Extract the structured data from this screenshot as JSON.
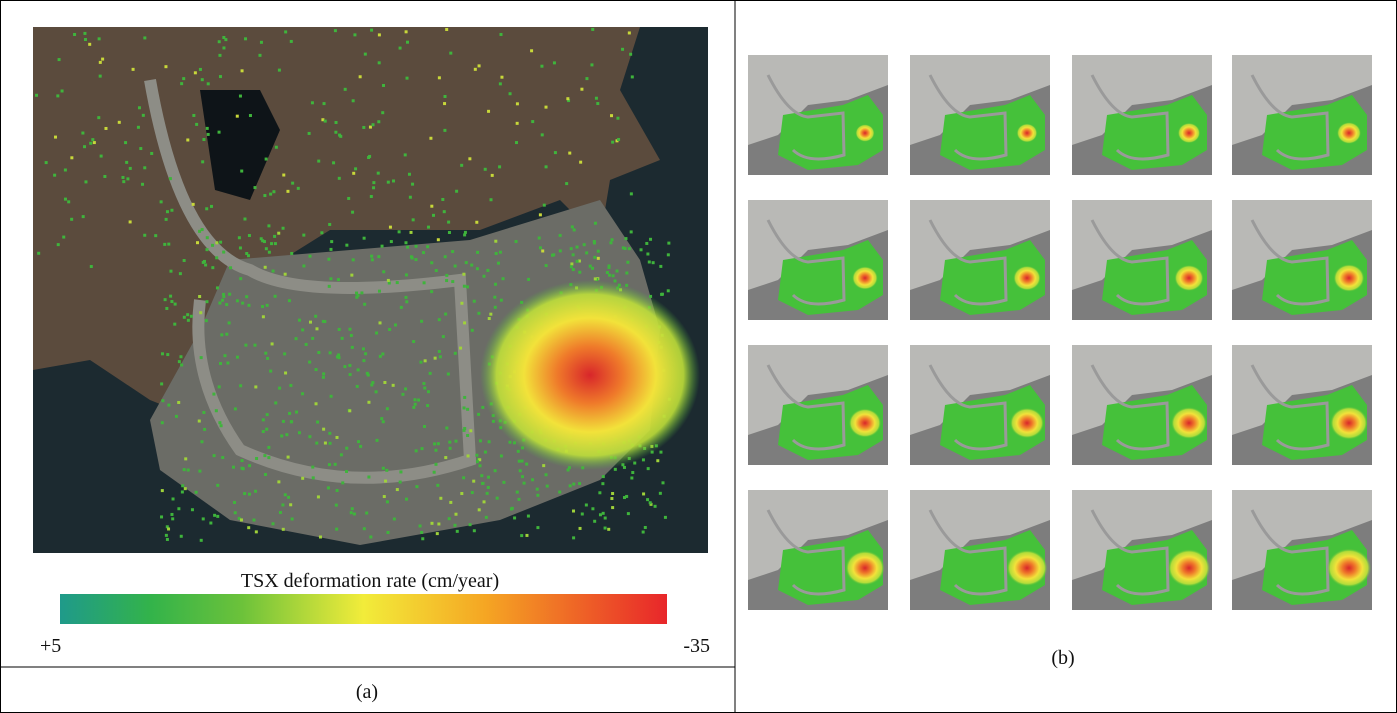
{
  "panel_a": {
    "colorbar": {
      "title": "TSX deformation rate (cm/year)",
      "left_label": "+5",
      "right_label": "-35"
    },
    "caption": "(a)"
  },
  "panel_b": {
    "caption": "(b)"
  }
}
